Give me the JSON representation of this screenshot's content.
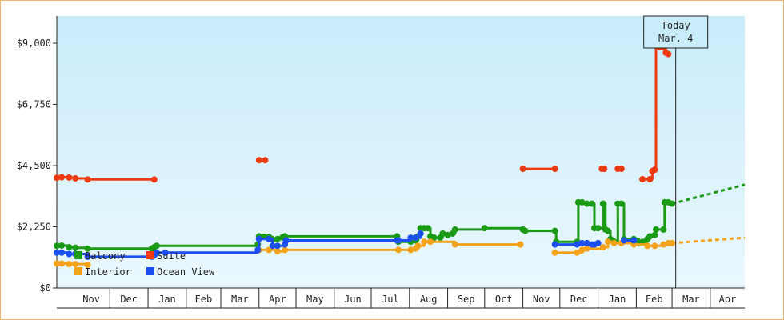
{
  "chart_data": {
    "type": "line",
    "title": "",
    "xlabel": "",
    "ylabel": "",
    "ylim": [
      0,
      10000
    ],
    "y_ticks": [
      {
        "value": 0,
        "label": "$0"
      },
      {
        "value": 2250,
        "label": "$2,250"
      },
      {
        "value": 4500,
        "label": "$4,500"
      },
      {
        "value": 6750,
        "label": "$6,750"
      },
      {
        "value": 9000,
        "label": "$9,000"
      }
    ],
    "x_axis_type": "date",
    "x_range": [
      "2022-10-19",
      "2024-04-29"
    ],
    "month_ticks": [
      {
        "label": "Nov",
        "start": "2022-11-01"
      },
      {
        "label": "Dec",
        "start": "2022-12-01"
      },
      {
        "label": "Jan",
        "start": "2023-01-01"
      },
      {
        "label": "Feb",
        "start": "2023-02-01"
      },
      {
        "label": "Mar",
        "start": "2023-03-01"
      },
      {
        "label": "Apr",
        "start": "2023-04-01"
      },
      {
        "label": "May",
        "start": "2023-05-01"
      },
      {
        "label": "Jun",
        "start": "2023-06-01"
      },
      {
        "label": "Jul",
        "start": "2023-07-01"
      },
      {
        "label": "Aug",
        "start": "2023-08-01"
      },
      {
        "label": "Sep",
        "start": "2023-09-01"
      },
      {
        "label": "Oct",
        "start": "2023-10-01"
      },
      {
        "label": "Nov",
        "start": "2023-11-01"
      },
      {
        "label": "Dec",
        "start": "2023-12-01"
      },
      {
        "label": "Jan",
        "start": "2024-01-01"
      },
      {
        "label": "Feb",
        "start": "2024-02-01"
      },
      {
        "label": "Mar",
        "start": "2024-03-01"
      },
      {
        "label": "Apr",
        "start": "2024-04-01"
      }
    ],
    "today_marker": {
      "date": "2024-03-04",
      "line1": "Today",
      "line2": "Mar. 4"
    },
    "grid": false,
    "legend_position": "bottom-left",
    "series": [
      {
        "name": "Suite",
        "color": "#ee3a11",
        "points": [
          [
            "2022-10-19",
            4050
          ],
          [
            "2022-10-23",
            4070
          ],
          [
            "2022-10-29",
            4060
          ],
          [
            "2022-11-03",
            4030
          ],
          [
            "2022-11-13",
            3990
          ],
          [
            "2023-01-06",
            3990
          ],
          null,
          [
            "2023-04-01",
            4700
          ],
          [
            "2023-04-06",
            4700
          ],
          null,
          [
            "2023-11-01",
            4380
          ],
          [
            "2023-11-27",
            4380
          ],
          null,
          [
            "2024-01-04",
            4380
          ],
          [
            "2024-01-06",
            4380
          ],
          null,
          [
            "2024-01-17",
            4380
          ],
          [
            "2024-01-20",
            4380
          ],
          null,
          [
            "2024-02-06",
            4000
          ],
          [
            "2024-02-12",
            4000
          ],
          [
            "2024-02-14",
            4300
          ],
          [
            "2024-02-16",
            4350
          ],
          [
            "2024-02-17",
            8900
          ],
          [
            "2024-02-20",
            8850
          ],
          [
            "2024-02-23",
            8850
          ],
          [
            "2024-02-25",
            8650
          ],
          [
            "2024-02-27",
            8600
          ]
        ]
      },
      {
        "name": "Balcony",
        "color": "#1b9a15",
        "points": [
          [
            "2022-10-19",
            1550
          ],
          [
            "2022-10-23",
            1560
          ],
          [
            "2022-10-29",
            1500
          ],
          [
            "2022-11-03",
            1480
          ],
          [
            "2022-11-13",
            1450
          ],
          [
            "2023-01-04",
            1450
          ],
          [
            "2023-01-06",
            1500
          ],
          [
            "2023-01-08",
            1550
          ],
          [
            "2023-03-31",
            1600
          ],
          [
            "2023-04-01",
            1900
          ],
          [
            "2023-04-05",
            1880
          ],
          [
            "2023-04-09",
            1880
          ],
          [
            "2023-04-12",
            1780
          ],
          [
            "2023-04-16",
            1800
          ],
          [
            "2023-04-20",
            1860
          ],
          [
            "2023-04-22",
            1900
          ],
          [
            "2023-07-22",
            1900
          ],
          [
            "2023-07-23",
            1700
          ],
          [
            "2023-08-02",
            1700
          ],
          [
            "2023-08-06",
            1750
          ],
          [
            "2023-08-08",
            1900
          ],
          [
            "2023-08-10",
            2200
          ],
          [
            "2023-08-13",
            2200
          ],
          [
            "2023-08-16",
            2200
          ],
          [
            "2023-08-18",
            1900
          ],
          [
            "2023-08-21",
            1850
          ],
          [
            "2023-08-26",
            1850
          ],
          [
            "2023-08-28",
            2000
          ],
          [
            "2023-09-01",
            1950
          ],
          [
            "2023-09-05",
            2000
          ],
          [
            "2023-09-07",
            2150
          ],
          [
            "2023-10-01",
            2200
          ],
          [
            "2023-11-01",
            2150
          ],
          [
            "2023-11-03",
            2100
          ],
          [
            "2023-11-27",
            2100
          ],
          [
            "2023-11-28",
            1700
          ],
          [
            "2023-12-15",
            1700
          ],
          [
            "2023-12-16",
            3150
          ],
          [
            "2023-12-19",
            3150
          ],
          [
            "2023-12-23",
            3100
          ],
          [
            "2023-12-27",
            3100
          ],
          [
            "2023-12-29",
            2200
          ],
          [
            "2024-01-01",
            2200
          ],
          [
            "2024-01-05",
            3100
          ],
          [
            "2024-01-07",
            2150
          ],
          [
            "2024-01-09",
            2100
          ],
          [
            "2024-01-11",
            1800
          ],
          [
            "2024-01-14",
            1700
          ],
          [
            "2024-01-17",
            3100
          ],
          [
            "2024-01-20",
            3100
          ],
          [
            "2024-01-22",
            1800
          ],
          [
            "2024-01-30",
            1800
          ],
          [
            "2024-02-03",
            1650
          ],
          [
            "2024-02-06",
            1700
          ],
          [
            "2024-02-10",
            1800
          ],
          [
            "2024-02-12",
            1900
          ],
          [
            "2024-02-16",
            1950
          ],
          [
            "2024-02-17",
            2150
          ],
          [
            "2024-02-23",
            2150
          ],
          [
            "2024-02-24",
            3150
          ],
          [
            "2024-02-27",
            3150
          ],
          [
            "2024-03-01",
            3100
          ]
        ],
        "forecast": [
          [
            "2024-03-01",
            3100
          ],
          [
            "2024-04-29",
            3800
          ]
        ]
      },
      {
        "name": "Interior",
        "color": "#f5a21b",
        "points": [
          [
            "2022-10-19",
            900
          ],
          [
            "2022-10-23",
            900
          ],
          [
            "2022-10-29",
            880
          ],
          [
            "2022-11-03",
            880
          ],
          [
            "2022-11-13",
            850
          ],
          null,
          [
            "2023-04-01",
            1400
          ],
          [
            "2023-04-09",
            1400
          ],
          [
            "2023-04-16",
            1350
          ],
          [
            "2023-04-22",
            1400
          ],
          [
            "2023-07-23",
            1400
          ],
          [
            "2023-08-02",
            1400
          ],
          [
            "2023-08-06",
            1450
          ],
          [
            "2023-08-08",
            1550
          ],
          [
            "2023-08-13",
            1700
          ],
          [
            "2023-08-18",
            1700
          ],
          [
            "2023-09-07",
            1600
          ],
          [
            "2023-10-30",
            1600
          ],
          null,
          [
            "2023-11-27",
            1300
          ],
          [
            "2023-12-15",
            1300
          ],
          [
            "2023-12-19",
            1400
          ],
          [
            "2023-12-23",
            1450
          ],
          [
            "2024-01-05",
            1500
          ],
          [
            "2024-01-09",
            1700
          ],
          [
            "2024-01-14",
            1650
          ],
          [
            "2024-01-20",
            1650
          ],
          [
            "2024-01-30",
            1600
          ],
          [
            "2024-02-10",
            1550
          ],
          [
            "2024-02-16",
            1550
          ],
          [
            "2024-02-23",
            1600
          ],
          [
            "2024-02-27",
            1650
          ],
          [
            "2024-03-01",
            1650
          ]
        ],
        "forecast": [
          [
            "2024-03-01",
            1650
          ],
          [
            "2024-04-29",
            1850
          ]
        ]
      },
      {
        "name": "Ocean View",
        "color": "#1b4ff0",
        "points": [
          [
            "2022-10-19",
            1300
          ],
          [
            "2022-10-23",
            1300
          ],
          [
            "2022-10-29",
            1250
          ],
          [
            "2022-11-03",
            1250
          ],
          [
            "2022-11-13",
            1150
          ],
          [
            "2023-01-04",
            1150
          ],
          [
            "2023-01-06",
            1200
          ],
          [
            "2023-01-08",
            1300
          ],
          [
            "2023-01-15",
            1300
          ],
          [
            "2023-03-31",
            1400
          ],
          [
            "2023-04-01",
            1800
          ],
          [
            "2023-04-09",
            1800
          ],
          [
            "2023-04-12",
            1550
          ],
          [
            "2023-04-16",
            1550
          ],
          [
            "2023-04-22",
            1600
          ],
          [
            "2023-04-23",
            1750
          ],
          [
            "2023-07-22",
            1750
          ],
          [
            "2023-07-23",
            1750
          ],
          [
            "2023-08-02",
            1850
          ],
          [
            "2023-08-06",
            1850
          ],
          [
            "2023-08-10",
            2000
          ],
          null,
          [
            "2023-11-27",
            1600
          ],
          [
            "2023-12-15",
            1600
          ],
          [
            "2023-12-19",
            1650
          ],
          [
            "2023-12-23",
            1650
          ],
          [
            "2023-12-27",
            1600
          ],
          [
            "2023-12-29",
            1600
          ],
          [
            "2024-01-01",
            1650
          ],
          null,
          [
            "2024-01-22",
            1750
          ],
          [
            "2024-01-30",
            1750
          ]
        ]
      }
    ],
    "legend": [
      {
        "name": "Balcony",
        "color": "#1b9a15"
      },
      {
        "name": "Suite",
        "color": "#ee3a11"
      },
      {
        "name": "Interior",
        "color": "#f5a21b"
      },
      {
        "name": "Ocean View",
        "color": "#1b4ff0"
      }
    ]
  }
}
